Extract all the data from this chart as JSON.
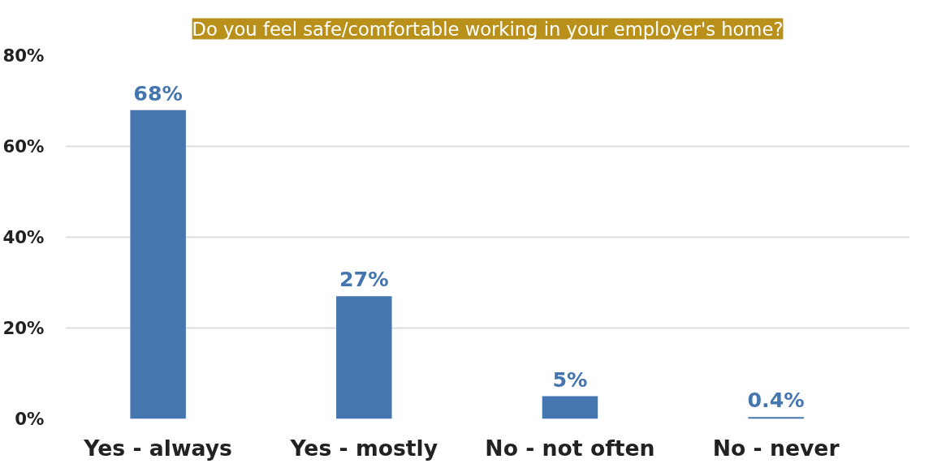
{
  "chart_data": {
    "type": "bar",
    "title": "Do you feel safe/comfortable working in your employer's home?",
    "categories": [
      "Yes - always",
      "Yes - mostly",
      "No - not often",
      "No - never"
    ],
    "values": [
      68,
      27,
      5,
      0.4
    ],
    "value_labels": [
      "68%",
      "27%",
      "5%",
      "0.4%"
    ],
    "color": "#4676b0",
    "ylim": [
      0,
      80
    ],
    "yticks": [
      {
        "value": 0,
        "label": "0%"
      },
      {
        "value": 20,
        "label": "20%"
      },
      {
        "value": 40,
        "label": "40%"
      },
      {
        "value": 60,
        "label": "60%"
      },
      {
        "value": 80,
        "label": "80%"
      }
    ],
    "grid": "y"
  }
}
